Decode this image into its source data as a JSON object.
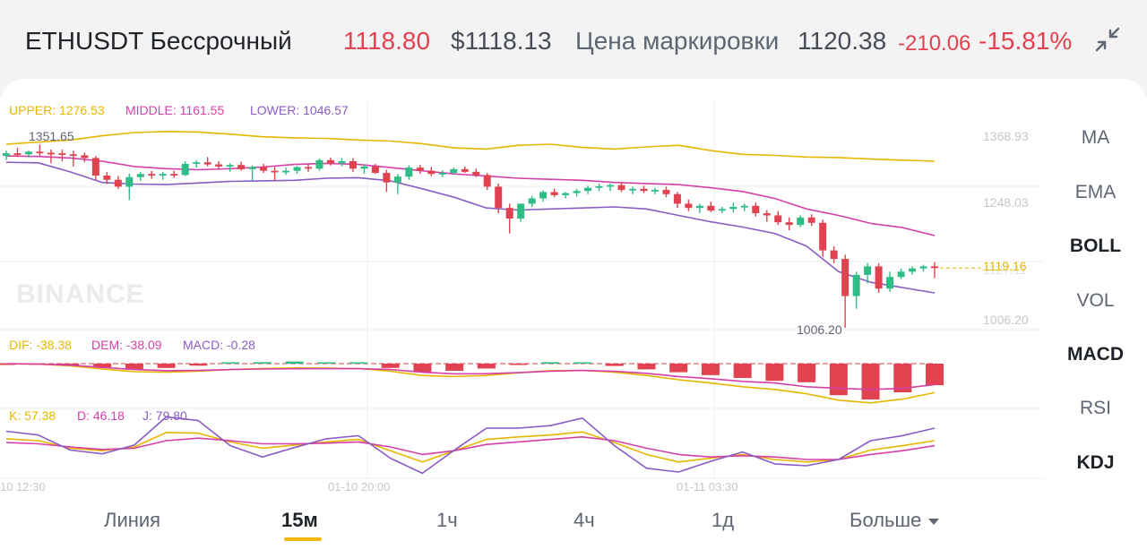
{
  "header": {
    "symbol": "ETHUSDT Бессрочный",
    "last_price": "1118.80",
    "usd_price": "$1118.13",
    "mark_label": "Цена маркировки",
    "mark_price": "1120.38",
    "change": "-210.06",
    "change_pct": "-15.81%",
    "colors": {
      "down": "#e0424f",
      "up": "#2ebd85",
      "accent": "#f0b90b"
    }
  },
  "legend": {
    "upper": "UPPER: 1276.53",
    "middle": "MIDDLE: 1161.55",
    "lower": "LOWER: 1046.57",
    "dif": "DIF: -38.38",
    "dem": "DEM: -38.09",
    "macd": "MACD: -0.28",
    "k": "K: 57.38",
    "d": "D: 46.18",
    "j": "J: 79.80"
  },
  "watermark": "BINANCE",
  "price_axis": [
    "1368.93",
    "1248.03",
    "1006.20"
  ],
  "current_price_label": "1119.16",
  "hidden_price_label": "1127.11",
  "annotations": {
    "high": "1351.65",
    "low": "1006.20"
  },
  "time_axis": [
    "10 12:30",
    "01-10 20:00",
    "01-11 03:30"
  ],
  "indicators": [
    {
      "label": "MA",
      "active": false
    },
    {
      "label": "EMA",
      "active": false
    },
    {
      "label": "BOLL",
      "active": true
    },
    {
      "label": "VOL",
      "active": false
    },
    {
      "label": "MACD",
      "active": true
    },
    {
      "label": "RSI",
      "active": false
    },
    {
      "label": "KDJ",
      "active": true
    }
  ],
  "timeframes": {
    "line": "Линия",
    "m15": "15м",
    "h1": "1ч",
    "h4": "4ч",
    "d1": "1д",
    "more": "Больше"
  },
  "chart_data": {
    "type": "candlestick",
    "interval": "15m",
    "ylim": [
      1006.2,
      1368.93
    ],
    "candles": [
      {
        "o": 1330,
        "h": 1340,
        "l": 1322,
        "c": 1335
      },
      {
        "o": 1335,
        "h": 1345,
        "l": 1328,
        "c": 1333
      },
      {
        "o": 1333,
        "h": 1340,
        "l": 1326,
        "c": 1338
      },
      {
        "o": 1338,
        "h": 1351.65,
        "l": 1330,
        "c": 1336
      },
      {
        "o": 1336,
        "h": 1342,
        "l": 1316,
        "c": 1335
      },
      {
        "o": 1335,
        "h": 1342,
        "l": 1320,
        "c": 1333
      },
      {
        "o": 1333,
        "h": 1340,
        "l": 1310,
        "c": 1331
      },
      {
        "o": 1331,
        "h": 1336,
        "l": 1318,
        "c": 1326
      },
      {
        "o": 1326,
        "h": 1330,
        "l": 1285,
        "c": 1293
      },
      {
        "o": 1293,
        "h": 1300,
        "l": 1277,
        "c": 1285
      },
      {
        "o": 1285,
        "h": 1292,
        "l": 1268,
        "c": 1272
      },
      {
        "o": 1272,
        "h": 1297,
        "l": 1247,
        "c": 1290
      },
      {
        "o": 1290,
        "h": 1300,
        "l": 1283,
        "c": 1296
      },
      {
        "o": 1296,
        "h": 1302,
        "l": 1287,
        "c": 1293
      },
      {
        "o": 1293,
        "h": 1300,
        "l": 1285,
        "c": 1296
      },
      {
        "o": 1296,
        "h": 1302,
        "l": 1289,
        "c": 1294
      },
      {
        "o": 1294,
        "h": 1320,
        "l": 1292,
        "c": 1315
      },
      {
        "o": 1315,
        "h": 1322,
        "l": 1308,
        "c": 1318
      },
      {
        "o": 1318,
        "h": 1328,
        "l": 1310,
        "c": 1314
      },
      {
        "o": 1314,
        "h": 1320,
        "l": 1306,
        "c": 1310
      },
      {
        "o": 1310,
        "h": 1316,
        "l": 1300,
        "c": 1313
      },
      {
        "o": 1313,
        "h": 1319,
        "l": 1302,
        "c": 1305
      },
      {
        "o": 1305,
        "h": 1312,
        "l": 1284,
        "c": 1309
      },
      {
        "o": 1309,
        "h": 1315,
        "l": 1298,
        "c": 1302
      },
      {
        "o": 1302,
        "h": 1309,
        "l": 1283,
        "c": 1300
      },
      {
        "o": 1300,
        "h": 1308,
        "l": 1294,
        "c": 1302
      },
      {
        "o": 1302,
        "h": 1311,
        "l": 1296,
        "c": 1309
      },
      {
        "o": 1309,
        "h": 1314,
        "l": 1300,
        "c": 1306
      },
      {
        "o": 1306,
        "h": 1325,
        "l": 1302,
        "c": 1322
      },
      {
        "o": 1322,
        "h": 1327,
        "l": 1312,
        "c": 1316
      },
      {
        "o": 1316,
        "h": 1326,
        "l": 1310,
        "c": 1320
      },
      {
        "o": 1320,
        "h": 1326,
        "l": 1300,
        "c": 1306
      },
      {
        "o": 1306,
        "h": 1314,
        "l": 1297,
        "c": 1310
      },
      {
        "o": 1310,
        "h": 1315,
        "l": 1296,
        "c": 1298
      },
      {
        "o": 1298,
        "h": 1304,
        "l": 1262,
        "c": 1280
      },
      {
        "o": 1280,
        "h": 1296,
        "l": 1258,
        "c": 1291
      },
      {
        "o": 1291,
        "h": 1312,
        "l": 1285,
        "c": 1308
      },
      {
        "o": 1308,
        "h": 1313,
        "l": 1296,
        "c": 1302
      },
      {
        "o": 1302,
        "h": 1309,
        "l": 1292,
        "c": 1296
      },
      {
        "o": 1296,
        "h": 1303,
        "l": 1290,
        "c": 1298
      },
      {
        "o": 1298,
        "h": 1308,
        "l": 1296,
        "c": 1305
      },
      {
        "o": 1305,
        "h": 1310,
        "l": 1298,
        "c": 1300
      },
      {
        "o": 1300,
        "h": 1306,
        "l": 1290,
        "c": 1294
      },
      {
        "o": 1294,
        "h": 1298,
        "l": 1266,
        "c": 1272
      },
      {
        "o": 1272,
        "h": 1278,
        "l": 1222,
        "c": 1232
      },
      {
        "o": 1232,
        "h": 1240,
        "l": 1184,
        "c": 1212
      },
      {
        "o": 1212,
        "h": 1240,
        "l": 1206,
        "c": 1240
      },
      {
        "o": 1240,
        "h": 1255,
        "l": 1234,
        "c": 1250
      },
      {
        "o": 1250,
        "h": 1265,
        "l": 1244,
        "c": 1262
      },
      {
        "o": 1262,
        "h": 1268,
        "l": 1252,
        "c": 1256
      },
      {
        "o": 1256,
        "h": 1262,
        "l": 1250,
        "c": 1260
      },
      {
        "o": 1260,
        "h": 1268,
        "l": 1254,
        "c": 1264
      },
      {
        "o": 1264,
        "h": 1274,
        "l": 1258,
        "c": 1270
      },
      {
        "o": 1270,
        "h": 1278,
        "l": 1264,
        "c": 1273
      },
      {
        "o": 1273,
        "h": 1278,
        "l": 1264,
        "c": 1275
      },
      {
        "o": 1275,
        "h": 1280,
        "l": 1262,
        "c": 1266
      },
      {
        "o": 1266,
        "h": 1272,
        "l": 1258,
        "c": 1268
      },
      {
        "o": 1268,
        "h": 1274,
        "l": 1260,
        "c": 1264
      },
      {
        "o": 1264,
        "h": 1270,
        "l": 1258,
        "c": 1266
      },
      {
        "o": 1266,
        "h": 1272,
        "l": 1252,
        "c": 1258
      },
      {
        "o": 1258,
        "h": 1262,
        "l": 1232,
        "c": 1240
      },
      {
        "o": 1240,
        "h": 1248,
        "l": 1226,
        "c": 1232
      },
      {
        "o": 1232,
        "h": 1240,
        "l": 1222,
        "c": 1236
      },
      {
        "o": 1236,
        "h": 1244,
        "l": 1224,
        "c": 1227
      },
      {
        "o": 1227,
        "h": 1234,
        "l": 1222,
        "c": 1230
      },
      {
        "o": 1230,
        "h": 1242,
        "l": 1224,
        "c": 1234
      },
      {
        "o": 1234,
        "h": 1240,
        "l": 1226,
        "c": 1236
      },
      {
        "o": 1236,
        "h": 1242,
        "l": 1216,
        "c": 1222
      },
      {
        "o": 1222,
        "h": 1228,
        "l": 1206,
        "c": 1218
      },
      {
        "o": 1218,
        "h": 1226,
        "l": 1200,
        "c": 1205
      },
      {
        "o": 1205,
        "h": 1214,
        "l": 1190,
        "c": 1200
      },
      {
        "o": 1200,
        "h": 1218,
        "l": 1196,
        "c": 1214
      },
      {
        "o": 1214,
        "h": 1220,
        "l": 1198,
        "c": 1204
      },
      {
        "o": 1204,
        "h": 1210,
        "l": 1140,
        "c": 1152
      },
      {
        "o": 1152,
        "h": 1160,
        "l": 1128,
        "c": 1136
      },
      {
        "o": 1136,
        "h": 1144,
        "l": 1006.2,
        "c": 1066
      },
      {
        "o": 1066,
        "h": 1112,
        "l": 1042,
        "c": 1106
      },
      {
        "o": 1106,
        "h": 1128,
        "l": 1090,
        "c": 1122
      },
      {
        "o": 1122,
        "h": 1128,
        "l": 1072,
        "c": 1080
      },
      {
        "o": 1080,
        "h": 1112,
        "l": 1074,
        "c": 1102
      },
      {
        "o": 1102,
        "h": 1118,
        "l": 1098,
        "c": 1112
      },
      {
        "o": 1112,
        "h": 1122,
        "l": 1106,
        "c": 1118
      },
      {
        "o": 1118,
        "h": 1125,
        "l": 1112,
        "c": 1122
      },
      {
        "o": 1122,
        "h": 1130,
        "l": 1100,
        "c": 1118.8
      }
    ],
    "bollinger": {
      "upper": [
        1352,
        1356,
        1360,
        1368,
        1374,
        1376,
        1375,
        1371,
        1366,
        1364,
        1363,
        1360,
        1358,
        1353,
        1345,
        1343,
        1350,
        1352,
        1346,
        1343,
        1347,
        1350,
        1340,
        1333,
        1331,
        1328,
        1327,
        1324,
        1322,
        1320
      ],
      "middle": [
        1330,
        1329,
        1326,
        1320,
        1310,
        1306,
        1304,
        1306,
        1309,
        1314,
        1316,
        1314,
        1308,
        1302,
        1296,
        1292,
        1288,
        1286,
        1284,
        1280,
        1278,
        1276,
        1270,
        1263,
        1250,
        1230,
        1218,
        1203,
        1195,
        1180
      ],
      "lower": [
        1318,
        1317,
        1300,
        1280,
        1277,
        1276,
        1279,
        1282,
        1283,
        1284,
        1288,
        1289,
        1283,
        1268,
        1252,
        1232,
        1228,
        1230,
        1232,
        1234,
        1230,
        1218,
        1206,
        1196,
        1184,
        1160,
        1112,
        1092,
        1082,
        1072
      ]
    },
    "macd": {
      "dif": [
        -0.4,
        -1,
        -4,
        -10,
        -15,
        -16,
        -14,
        -11,
        -9,
        -8,
        -8.5,
        -9,
        -14,
        -22,
        -24,
        -22,
        -17,
        -13,
        -12.6,
        -16,
        -22,
        -30,
        -36,
        -43,
        -48,
        -56,
        -68,
        -73,
        -66,
        -54
      ],
      "dem": [
        -0.2,
        -0.6,
        -2.8,
        -7,
        -11,
        -13,
        -12.6,
        -11,
        -10,
        -9.5,
        -9.4,
        -9.4,
        -11,
        -16,
        -19,
        -18.6,
        -16.8,
        -14,
        -12.6,
        -14.4,
        -18,
        -24,
        -28,
        -33,
        -36,
        -43,
        -46,
        -48,
        -46,
        -39
      ]
    },
    "kdj": {
      "k": [
        63,
        60,
        48,
        44,
        50,
        73,
        72,
        58,
        48,
        53,
        58,
        62,
        44,
        26,
        44,
        62,
        66,
        69,
        74,
        57,
        38,
        26,
        32,
        38,
        30,
        26,
        30,
        45,
        52,
        60
      ],
      "d": [
        57,
        55,
        50,
        46,
        48,
        60,
        64,
        60,
        55,
        55,
        56,
        58,
        50,
        38,
        44,
        54,
        58,
        62,
        66,
        60,
        48,
        38,
        34,
        36,
        34,
        30,
        30,
        38,
        44,
        52
      ],
      "j": [
        75,
        69,
        45,
        39,
        53,
        98,
        92,
        52,
        34,
        49,
        63,
        68,
        32,
        8,
        45,
        80,
        80,
        84,
        96,
        52,
        16,
        10,
        27,
        42,
        23,
        20,
        30,
        60,
        68,
        80
      ]
    }
  }
}
